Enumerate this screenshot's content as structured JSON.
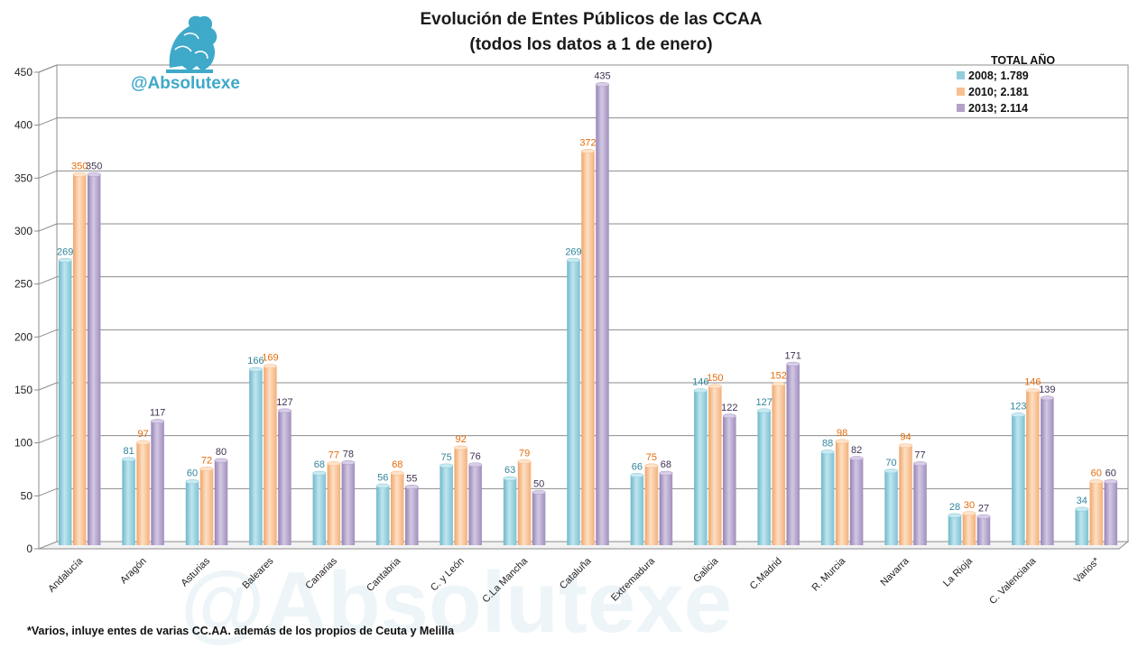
{
  "chart_data": {
    "type": "bar",
    "title": "Evolución de Entes Públicos de las CCAA",
    "subtitle": "(todos los datos a 1 de enero)",
    "categories": [
      "Andalucía",
      "Aragón",
      "Asturias",
      "Baleares",
      "Canarias",
      "Cantabria",
      "C. y León",
      "C.La Mancha",
      "Cataluña",
      "Extremadura",
      "Galicia",
      "C.Madrid",
      "R. Murcia",
      "Navarra",
      "La Rioja",
      "C. Valenciana",
      "Varios*"
    ],
    "series": [
      {
        "name": "2008",
        "color": "#92cddc",
        "values": [
          269,
          81,
          60,
          166,
          68,
          56,
          75,
          63,
          269,
          66,
          146,
          127,
          88,
          70,
          28,
          123,
          34
        ]
      },
      {
        "name": "2010",
        "color": "#fabf8f",
        "values": [
          350,
          97,
          72,
          169,
          77,
          68,
          92,
          79,
          372,
          75,
          150,
          152,
          98,
          94,
          30,
          146,
          60
        ]
      },
      {
        "name": "2013",
        "color": "#b3a2c7",
        "values": [
          350,
          117,
          80,
          127,
          78,
          55,
          76,
          50,
          435,
          68,
          122,
          171,
          82,
          77,
          27,
          139,
          60
        ]
      }
    ],
    "ylim": [
      0,
      450
    ],
    "yticks": [
      "0",
      "50",
      "100",
      "150",
      "200",
      "250",
      "300",
      "350",
      "400",
      "450"
    ],
    "grid": true,
    "legend_placement": "top-right",
    "legend_title": "TOTAL AÑO",
    "legend_entries": [
      "2008;   1.789",
      "2010;   2.181",
      "2013;   2.114"
    ],
    "label_colors": [
      "#31859c",
      "#e46c0a",
      "#3f3151"
    ]
  },
  "brand": "@Absolutexe",
  "watermark": "@Absolutexe",
  "footnote": "*Varios, inluye entes de varias CC.AA. además de los propios de Ceuta y Melilla",
  "logo_icon": "griffin-logo-icon"
}
